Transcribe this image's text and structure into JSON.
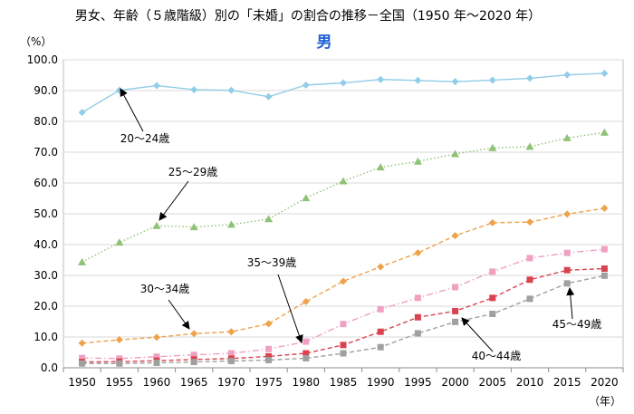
{
  "chart_data": {
    "type": "line",
    "title": "男女、年齢（５歳階級）別の「未婚」の割合の推移－全国（1950 年～2020 年）",
    "subtitle": "男",
    "ylabel": "（%）",
    "xlabel": "（年）",
    "ylim": [
      0,
      100
    ],
    "ytick_labels": [
      "0.0",
      "10.0",
      "20.0",
      "30.0",
      "40.0",
      "50.0",
      "60.0",
      "70.0",
      "80.0",
      "90.0",
      "100.0"
    ],
    "categories": [
      "1950",
      "1955",
      "1960",
      "1965",
      "1970",
      "1975",
      "1980",
      "1985",
      "1990",
      "1995",
      "2000",
      "2005",
      "2010",
      "2015",
      "2020"
    ],
    "grid": "horizontal",
    "series": [
      {
        "name": "20～24歳",
        "color": "#92cde8",
        "marker": "diamond",
        "line": "solid",
        "values": [
          82.9,
          90.1,
          91.6,
          90.3,
          90.1,
          88.0,
          91.8,
          92.5,
          93.6,
          93.3,
          92.9,
          93.4,
          94.0,
          95.1,
          95.6
        ]
      },
      {
        "name": "25～29歳",
        "color": "#8fc275",
        "marker": "triangle",
        "line": "dotted",
        "values": [
          34.3,
          40.7,
          46.1,
          45.7,
          46.5,
          48.3,
          55.1,
          60.6,
          65.1,
          67.0,
          69.4,
          71.4,
          71.8,
          74.6,
          76.4
        ]
      },
      {
        "name": "30～34歳",
        "color": "#eea24a",
        "marker": "diamond",
        "line": "dashed",
        "values": [
          8.0,
          9.1,
          9.9,
          11.1,
          11.7,
          14.3,
          21.5,
          28.1,
          32.8,
          37.3,
          42.9,
          47.1,
          47.3,
          49.9,
          51.8
        ]
      },
      {
        "name": "35～39歳",
        "color": "#f0a0c0",
        "marker": "square",
        "line": "dashdot",
        "values": [
          3.2,
          3.0,
          3.6,
          4.2,
          4.7,
          6.1,
          8.5,
          14.2,
          19.0,
          22.7,
          26.2,
          31.2,
          35.6,
          37.3,
          38.5
        ]
      },
      {
        "name": "40～44歳",
        "color": "#d9434f",
        "marker": "square",
        "line": "dashed",
        "values": [
          1.9,
          2.0,
          2.3,
          2.7,
          3.0,
          3.7,
          4.7,
          7.4,
          11.7,
          16.4,
          18.4,
          22.7,
          28.6,
          31.7,
          32.2
        ]
      },
      {
        "name": "45～49歳",
        "color": "#a0a0a0",
        "marker": "square",
        "line": "dashed",
        "values": [
          1.4,
          1.4,
          1.6,
          1.9,
          2.2,
          2.5,
          3.1,
          4.7,
          6.7,
          11.2,
          14.9,
          17.5,
          22.4,
          27.4,
          29.9
        ]
      }
    ]
  }
}
